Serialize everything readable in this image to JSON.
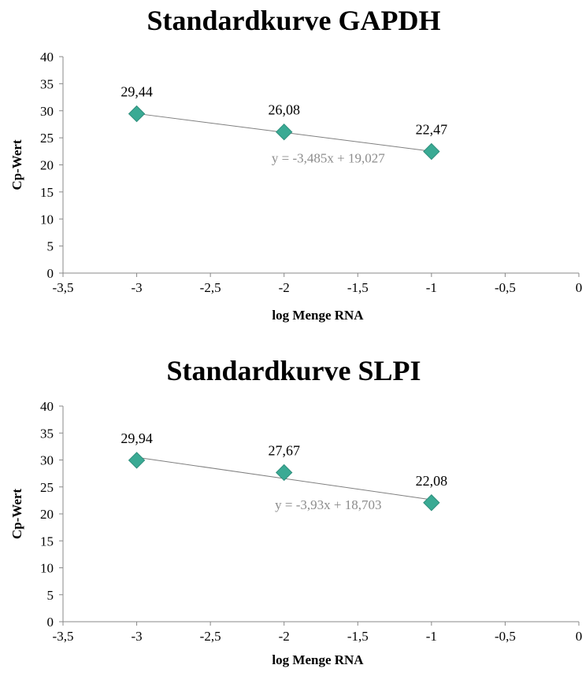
{
  "chart_data": [
    {
      "type": "scatter",
      "title": "Standardkurve GAPDH",
      "xlabel": "log Menge RNA",
      "ylabel": "Cp-Wert",
      "xlim": [
        -3.5,
        0
      ],
      "ylim": [
        0,
        40
      ],
      "x_ticks": [
        "-3,5",
        "-3",
        "-2,5",
        "-2",
        "-1,5",
        "-1",
        "-0,5",
        "0"
      ],
      "y_ticks": [
        "0",
        "5",
        "10",
        "15",
        "20",
        "25",
        "30",
        "35",
        "40"
      ],
      "grid": false,
      "legend": "none",
      "marker": "diamond",
      "marker_color": "#3aaa94",
      "trendline_color": "#7f7f7f",
      "points": [
        {
          "x": -3,
          "y": 29.44,
          "label": "29,44"
        },
        {
          "x": -2,
          "y": 26.08,
          "label": "26,08"
        },
        {
          "x": -1,
          "y": 22.47,
          "label": "22,47"
        }
      ],
      "trendline": {
        "slope": -3.485,
        "intercept": 19.027
      },
      "equation": "y = -3,485x + 19,027"
    },
    {
      "type": "scatter",
      "title": "Standardkurve SLPI",
      "xlabel": "log Menge RNA",
      "ylabel": "Cp-Wert",
      "xlim": [
        -3.5,
        0
      ],
      "ylim": [
        0,
        40
      ],
      "x_ticks": [
        "-3,5",
        "-3",
        "-2,5",
        "-2",
        "-1,5",
        "-1",
        "-0,5",
        "0"
      ],
      "y_ticks": [
        "0",
        "5",
        "10",
        "15",
        "20",
        "25",
        "30",
        "35",
        "40"
      ],
      "grid": false,
      "legend": "none",
      "marker": "diamond",
      "marker_color": "#3aaa94",
      "trendline_color": "#7f7f7f",
      "points": [
        {
          "x": -3,
          "y": 29.94,
          "label": "29,94"
        },
        {
          "x": -2,
          "y": 27.67,
          "label": "27,67"
        },
        {
          "x": -1,
          "y": 22.08,
          "label": "22,08"
        }
      ],
      "trendline": {
        "slope": -3.93,
        "intercept": 18.703
      },
      "equation": "y = -3,93x + 18,703"
    }
  ]
}
